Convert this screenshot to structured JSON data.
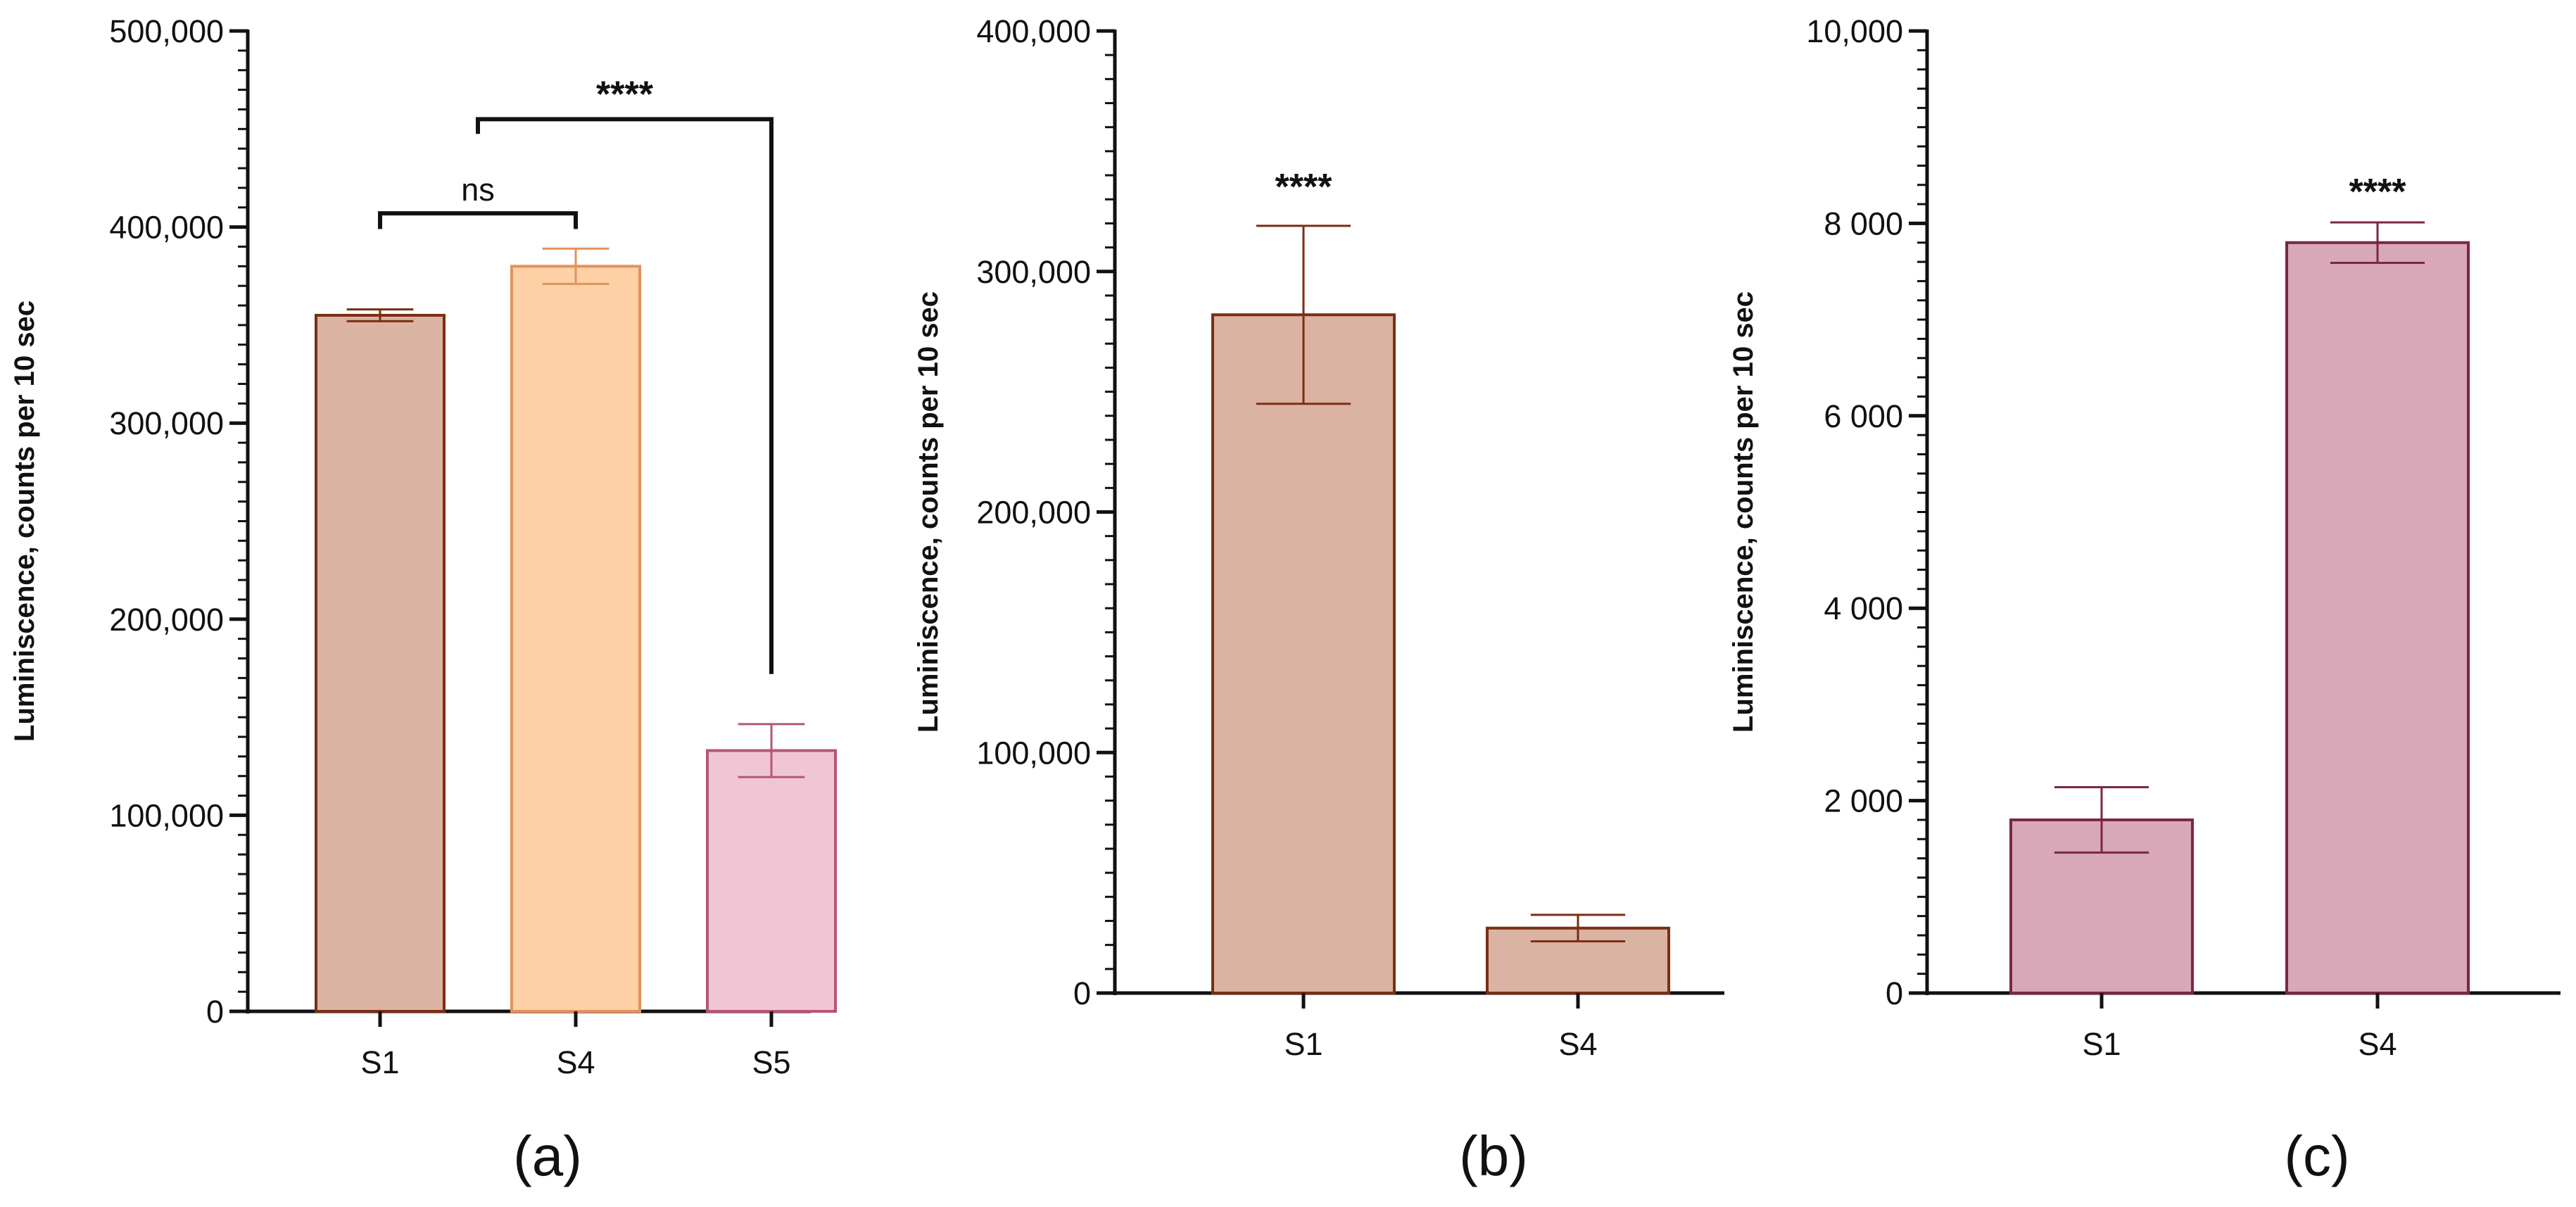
{
  "chart_data": [
    {
      "type": "bar",
      "panel_label": "(a)",
      "ylabel": "Luminiscence, counts per 10 sec",
      "ylim": [
        0,
        500000
      ],
      "yticks": [
        0,
        100000,
        200000,
        300000,
        400000,
        500000
      ],
      "ytick_labels": [
        "0",
        "100,000",
        "200,000",
        "300,000",
        "400,000",
        "500,000"
      ],
      "minor_ticks_per_major": 10,
      "categories": [
        "S1",
        "S4",
        "S5"
      ],
      "values": [
        355000,
        380000,
        133000
      ],
      "errors": [
        3000,
        9000,
        13500
      ],
      "fill_colors": [
        "#dbb3a2",
        "#fdd0a6",
        "#f1c6d4"
      ],
      "edge_colors": [
        "#7a2e12",
        "#e2925c",
        "#b5557c"
      ],
      "comparisons": [
        {
          "from": 0,
          "to": 1,
          "label": "ns",
          "y": 407000,
          "drop": 8000
        },
        {
          "from": 0.5,
          "to": 2,
          "label": "****",
          "y": 455000,
          "drop": 7500,
          "right_end": 172000
        }
      ]
    },
    {
      "type": "bar",
      "panel_label": "(b)",
      "ylabel": "Luminiscence, counts per 10 sec",
      "ylim": [
        0,
        400000
      ],
      "yticks": [
        0,
        100000,
        200000,
        300000,
        400000
      ],
      "ytick_labels": [
        "0",
        "100,000",
        "200,000",
        "300,000",
        "400,000"
      ],
      "minor_ticks_per_major": 10,
      "categories": [
        "S1",
        "S4"
      ],
      "values": [
        282000,
        27000
      ],
      "errors": [
        37000,
        5500
      ],
      "fill_colors": [
        "#dbb3a2",
        "#dbb3a2"
      ],
      "edge_colors": [
        "#7a2e12",
        "#7a2e12"
      ],
      "annotations": [
        {
          "category": 0,
          "label": "****",
          "y": 330000
        }
      ]
    },
    {
      "type": "bar",
      "panel_label": "(c)",
      "ylabel": "Luminiscence, counts per 10 sec",
      "ylim": [
        0,
        10000
      ],
      "yticks": [
        0,
        2000,
        4000,
        6000,
        8000,
        10000
      ],
      "ytick_labels": [
        "0",
        "2 000",
        "4 000",
        "6 000",
        "8 000",
        "10,000"
      ],
      "minor_ticks_per_major": 10,
      "categories": [
        "S1",
        "S4"
      ],
      "values": [
        1800,
        7800
      ],
      "errors": [
        340,
        210
      ],
      "fill_colors": [
        "#d8a8b8",
        "#d8a8b8"
      ],
      "edge_colors": [
        "#7b2647",
        "#7b2647"
      ],
      "annotations": [
        {
          "category": 1,
          "label": "****",
          "y": 8200
        }
      ]
    }
  ]
}
